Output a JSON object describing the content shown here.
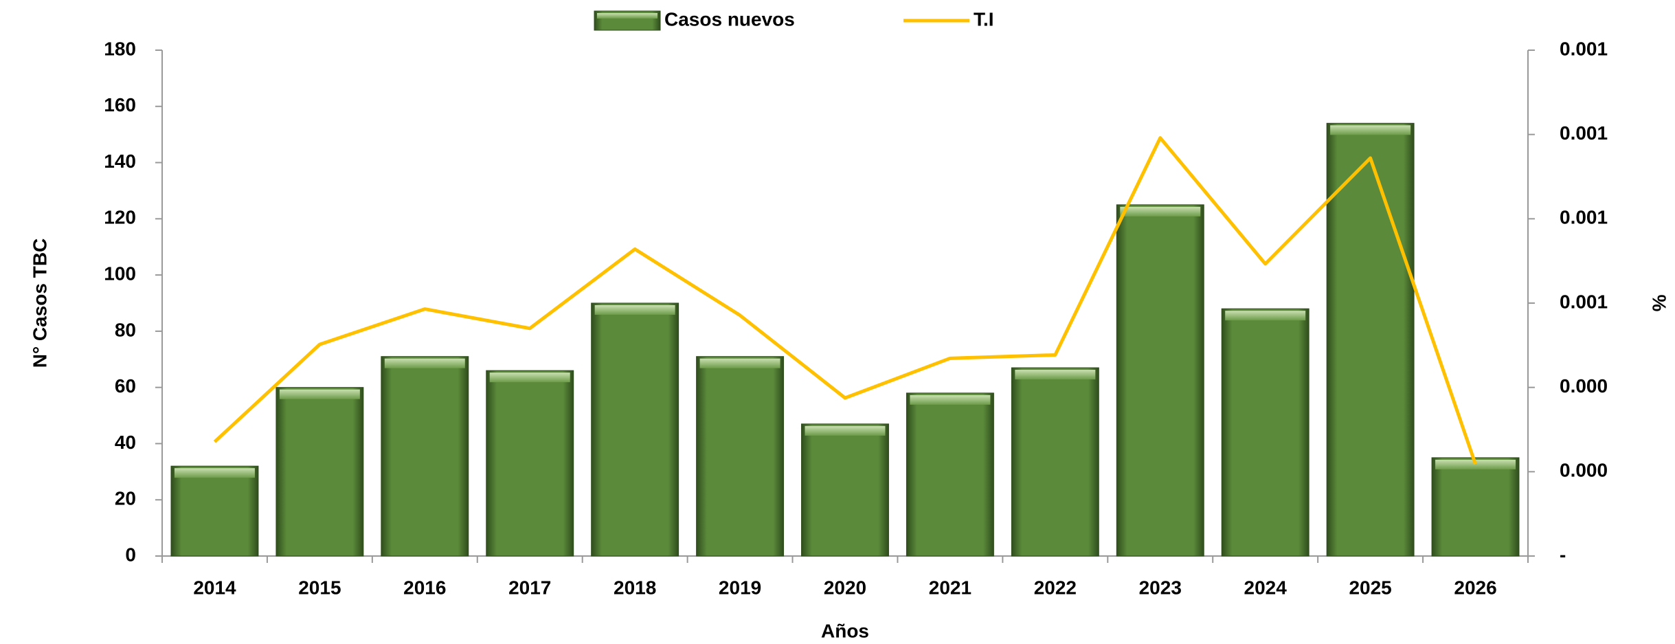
{
  "chart_data": {
    "type": "bar",
    "categories": [
      "2014",
      "2015",
      "2016",
      "2017",
      "2018",
      "2019",
      "2020",
      "2021",
      "2022",
      "2023",
      "2024",
      "2025",
      "2026"
    ],
    "series": [
      {
        "name": "Casos nuevos",
        "type": "bar",
        "color": "#5b8a3a",
        "values": [
          32,
          60,
          71,
          66,
          90,
          71,
          47,
          58,
          67,
          125,
          88,
          154,
          35
        ]
      },
      {
        "name": "T.I",
        "type": "line",
        "axis": "y2",
        "color": "#ffc000",
        "values": [
          0.000271,
          0.000502,
          0.000586,
          0.00054,
          0.000728,
          0.000571,
          0.000375,
          0.000469,
          0.000477,
          0.000992,
          0.000693,
          0.000944,
          0.000218
        ]
      }
    ],
    "ylabel": "N° Casos TBC",
    "y2label": "%",
    "xlabel": "Años",
    "ylim": [
      0,
      180
    ],
    "yticks": [
      0,
      20,
      40,
      60,
      80,
      100,
      120,
      140,
      160,
      180
    ],
    "y2lim": [
      0,
      0.0012
    ],
    "y2ticks": [
      {
        "value": 0,
        "label": "-"
      },
      {
        "value": 0.0002,
        "label": "0.000"
      },
      {
        "value": 0.0004,
        "label": "0.000"
      },
      {
        "value": 0.0006,
        "label": "0.001"
      },
      {
        "value": 0.0008,
        "label": "0.001"
      },
      {
        "value": 0.001,
        "label": "0.001"
      },
      {
        "value": 0.0012,
        "label": "0.001"
      }
    ],
    "legend": "top"
  }
}
